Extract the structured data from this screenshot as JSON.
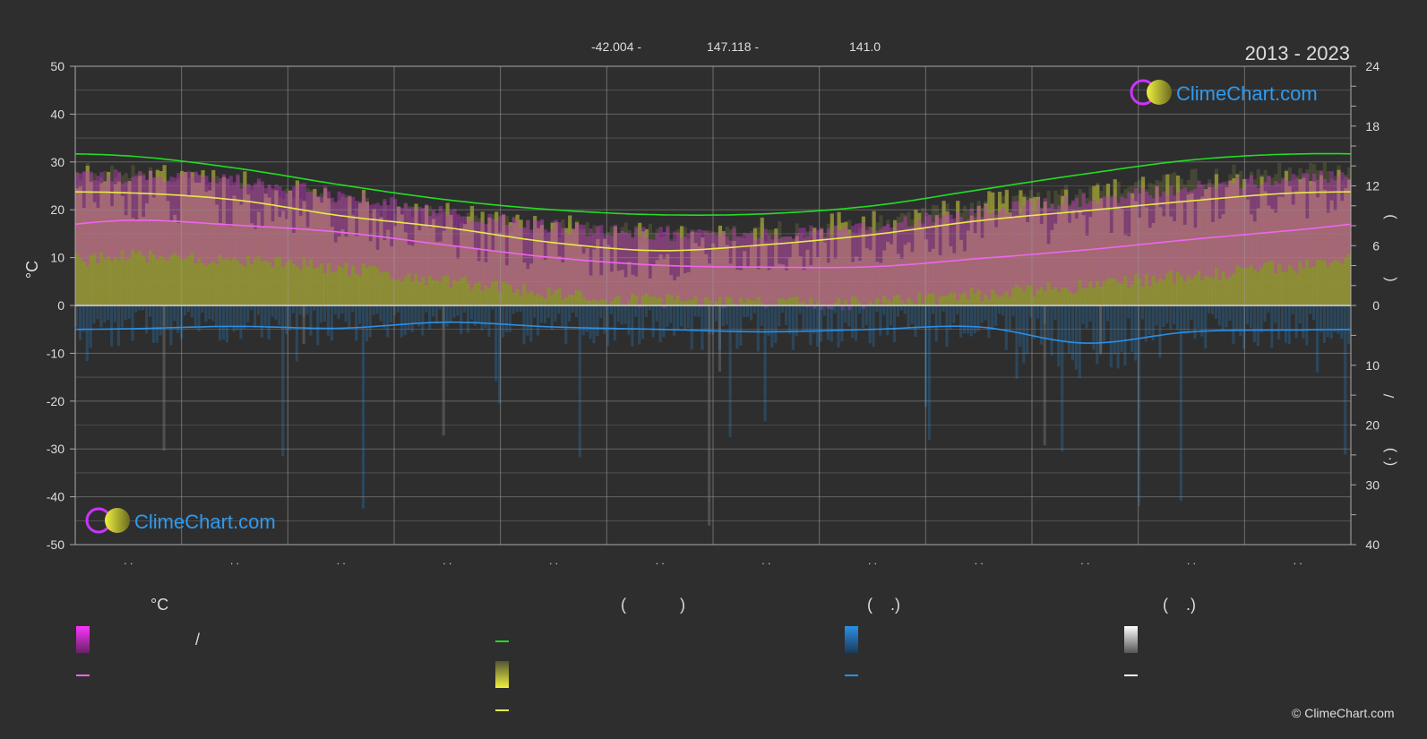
{
  "header": {
    "coord_lat": "-42.004 -",
    "coord_lon": "147.118 -",
    "elevation": "141.0",
    "years": "2013 - 2023"
  },
  "brand": {
    "name": "ClimeChart.com",
    "copyright": "© ClimeChart.com"
  },
  "left_axis": {
    "unit": "°C",
    "ticks": [
      "50",
      "40",
      "30",
      "20",
      "10",
      "0",
      "-10",
      "-20",
      "-30",
      "-40",
      "-50"
    ]
  },
  "right_axis": {
    "hours_ticks": [
      "24",
      "18",
      "12",
      "6",
      "0"
    ],
    "precip_ticks": [
      "10",
      "20",
      "30",
      "40"
    ],
    "paren_open": "(",
    "paren_close": ")",
    "slash": "/",
    "dot_paren": "(· )"
  },
  "month_labels": [
    ". .",
    ". .",
    ". .",
    ". .",
    ". .",
    ". .",
    ". .",
    ". .",
    ". .",
    ". .",
    ". .",
    ". ."
  ],
  "legend": {
    "col1_header": "°C",
    "col1_slash": "/",
    "col2_header": "(            )",
    "col3_header": "(    .)",
    "col4_header": "(    .)"
  },
  "colors": {
    "background": "#2e2e2e",
    "daylight": "#22dd22",
    "sunshine": "#e8e84a",
    "temperature": "#ee66ee",
    "temp_band": "#cc33cc",
    "sun_band": "#a8a832",
    "precip": "#2a90e8",
    "snow": "#ffffff",
    "brand": "#2e9bf0"
  },
  "chart_data": {
    "type": "line",
    "x": [
      "Jan",
      "Feb",
      "Mar",
      "Apr",
      "May",
      "Jun",
      "Jul",
      "Aug",
      "Sep",
      "Oct",
      "Nov",
      "Dec"
    ],
    "ylim_left": [
      -50,
      50
    ],
    "y2_hours_range": [
      0,
      24
    ],
    "y2_precip_range": [
      0,
      40
    ],
    "grid": true,
    "series": [
      {
        "key": "daylight",
        "axis": "hours",
        "values": [
          15.0,
          13.8,
          12.1,
          10.6,
          9.6,
          9.1,
          9.2,
          10.0,
          11.6,
          13.2,
          14.6,
          15.2
        ]
      },
      {
        "key": "sunshine",
        "axis": "hours",
        "values": [
          11.3,
          10.6,
          9.0,
          7.8,
          6.3,
          5.5,
          6.1,
          7.1,
          8.5,
          9.5,
          10.5,
          11.3
        ]
      },
      {
        "key": "temp_mean",
        "axis": "temp",
        "values": [
          17.8,
          16.8,
          15.3,
          12.6,
          10.0,
          8.4,
          8.0,
          8.1,
          9.8,
          11.6,
          13.8,
          15.8
        ]
      },
      {
        "key": "temp_max_band",
        "axis": "temp",
        "values": [
          28.5,
          27.5,
          24.5,
          21.0,
          18.0,
          16.5,
          16.5,
          18.0,
          21.0,
          23.5,
          26.0,
          28.0
        ]
      },
      {
        "key": "precip_mean",
        "axis": "precip",
        "values": [
          3.9,
          3.5,
          3.8,
          2.8,
          3.6,
          4.0,
          4.4,
          4.0,
          3.6,
          6.3,
          4.4,
          4.1
        ]
      }
    ]
  }
}
